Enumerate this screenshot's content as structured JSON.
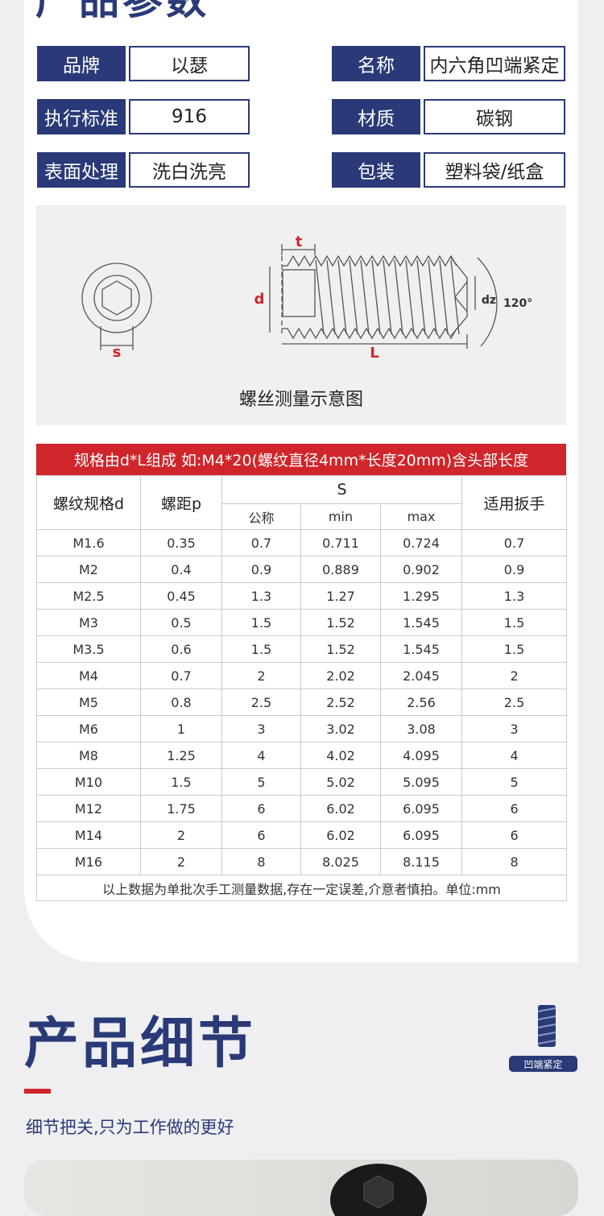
{
  "header": {
    "title": "产品参数"
  },
  "specs": [
    {
      "label": "品牌",
      "value": "以瑟"
    },
    {
      "label": "名称",
      "value": "内六角凹端紧定"
    },
    {
      "label": "执行标准",
      "value": "916"
    },
    {
      "label": "材质",
      "value": "碳钢"
    },
    {
      "label": "表面处理",
      "value": "洗白洗亮"
    },
    {
      "label": "包装",
      "value": "塑料袋/纸盒"
    }
  ],
  "diagram": {
    "labels": {
      "t": "t",
      "d": "d",
      "dz": "dz",
      "angle": "120°",
      "L": "L",
      "s": "s"
    },
    "caption": "螺丝测量示意图"
  },
  "table": {
    "banner": "规格由d*L组成 如:M4*20(螺纹直径4mm*长度20mm)含头部长度",
    "col_thread": "螺纹规格d",
    "col_pitch": "螺距p",
    "col_s": "S",
    "s_sub": [
      "公称",
      "min",
      "max"
    ],
    "col_wrench": "适用扳手",
    "rows": [
      [
        "M1.6",
        "0.35",
        "0.7",
        "0.711",
        "0.724",
        "0.7"
      ],
      [
        "M2",
        "0.4",
        "0.9",
        "0.889",
        "0.902",
        "0.9"
      ],
      [
        "M2.5",
        "0.45",
        "1.3",
        "1.27",
        "1.295",
        "1.3"
      ],
      [
        "M3",
        "0.5",
        "1.5",
        "1.52",
        "1.545",
        "1.5"
      ],
      [
        "M3.5",
        "0.6",
        "1.5",
        "1.52",
        "1.545",
        "1.5"
      ],
      [
        "M4",
        "0.7",
        "2",
        "2.02",
        "2.045",
        "2"
      ],
      [
        "M5",
        "0.8",
        "2.5",
        "2.52",
        "2.56",
        "2.5"
      ],
      [
        "M6",
        "1",
        "3",
        "3.02",
        "3.08",
        "3"
      ],
      [
        "M8",
        "1.25",
        "4",
        "4.02",
        "4.095",
        "4"
      ],
      [
        "M10",
        "1.5",
        "5",
        "5.02",
        "5.095",
        "5"
      ],
      [
        "M12",
        "1.75",
        "6",
        "6.02",
        "6.095",
        "6"
      ],
      [
        "M14",
        "2",
        "6",
        "6.02",
        "6.095",
        "6"
      ],
      [
        "M16",
        "2",
        "8",
        "8.025",
        "8.115",
        "8"
      ]
    ],
    "note": "以上数据为单批次手工测量数据,存在一定误差,介意者慎拍。单位:mm"
  },
  "details": {
    "title": "产品细节",
    "subtitle": "细节把关,只为工作做的更好",
    "tag": "凹端紧定"
  }
}
